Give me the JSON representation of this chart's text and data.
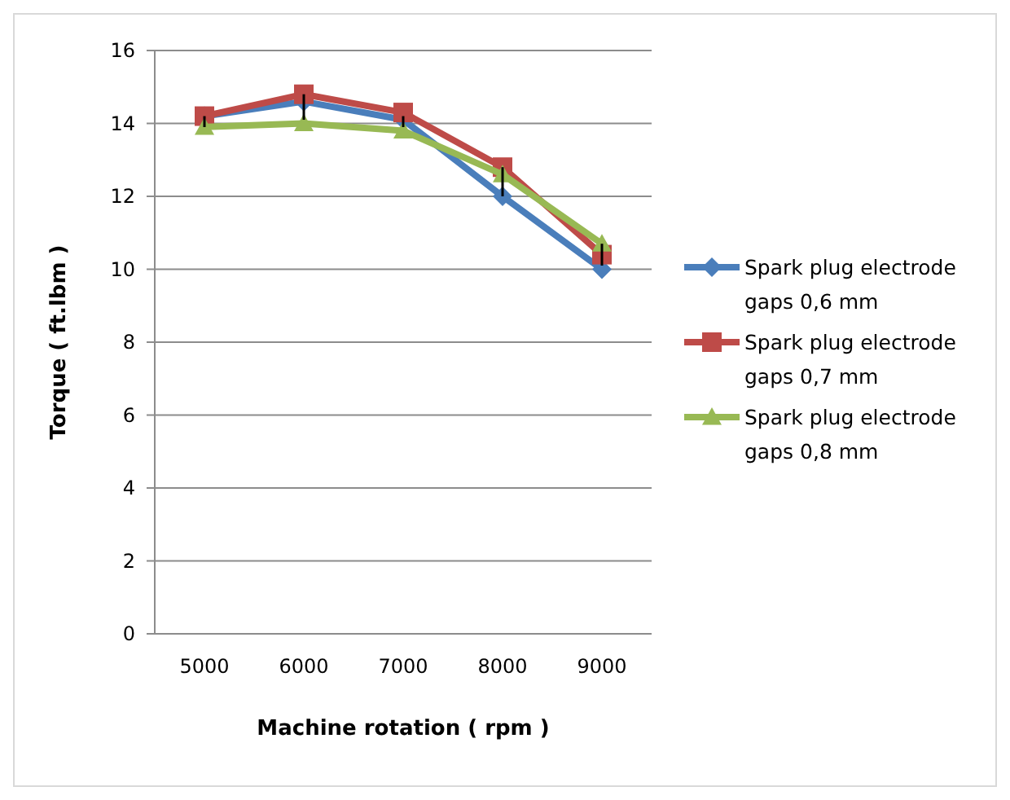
{
  "chart_data": {
    "type": "line",
    "xlabel": "Machine rotation ( rpm )",
    "ylabel": "Torque  ( ft.lbm )",
    "categories": [
      "5000",
      "6000",
      "7000",
      "8000",
      "9000"
    ],
    "series": [
      {
        "name": "Spark plug electrode gaps 0,6 mm",
        "color": "#4a7ebb",
        "marker": "diamond",
        "values": [
          14.2,
          14.6,
          14.1,
          12.0,
          10.0
        ]
      },
      {
        "name": "Spark plug electrode gaps 0,7 mm",
        "color": "#be4b48",
        "marker": "square",
        "values": [
          14.2,
          14.8,
          14.3,
          12.8,
          10.4
        ],
        "errors": [
          [
            13.9,
            14.2
          ],
          [
            14.1,
            14.8
          ],
          [
            13.9,
            14.2
          ],
          [
            12.0,
            12.8
          ],
          [
            10.1,
            10.7
          ]
        ]
      },
      {
        "name": "Spark plug electrode gaps 0,8 mm",
        "color": "#98b954",
        "marker": "triangle",
        "values": [
          13.9,
          14.0,
          13.8,
          12.6,
          10.7
        ]
      }
    ],
    "ylim": [
      0,
      16
    ],
    "yticks": [
      0,
      2,
      4,
      6,
      8,
      10,
      12,
      14,
      16
    ],
    "grid": "y",
    "legend": "right",
    "line_style": "solid"
  }
}
